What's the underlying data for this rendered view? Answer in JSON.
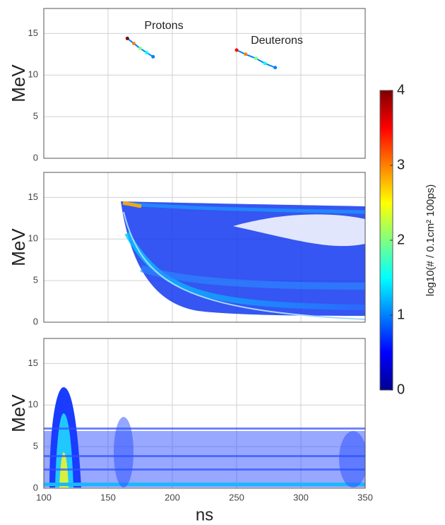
{
  "chart_data": [
    {
      "type": "heatmap",
      "ylabel": "MeV",
      "xlim": [
        100,
        350
      ],
      "ylim": [
        0,
        18
      ],
      "xticks": [
        100,
        150,
        200,
        250,
        300,
        350
      ],
      "yticks": [
        0,
        5,
        10,
        15
      ],
      "grid": true,
      "show_xtick_labels": false,
      "annotations": [
        "Protons",
        "Deuterons"
      ],
      "series": [
        {
          "x": [
            165,
            170,
            175,
            180,
            185
          ],
          "values": [
            14.4,
            13.8,
            13.2,
            12.7,
            12.2
          ],
          "z": [
            3.8,
            2.8,
            2,
            1.4,
            1.1
          ]
        },
        {
          "x": [
            250,
            257,
            265,
            272,
            280
          ],
          "values": [
            13,
            12.5,
            12,
            11.4,
            10.9
          ],
          "z": [
            3.6,
            3,
            2.2,
            1.5,
            1.2
          ]
        }
      ]
    },
    {
      "type": "heatmap",
      "ylabel": "MeV",
      "xlim": [
        100,
        350
      ],
      "ylim": [
        0,
        18
      ],
      "xticks": [
        100,
        150,
        200,
        250,
        300,
        350
      ],
      "yticks": [
        0,
        5,
        10,
        15
      ],
      "grid": true,
      "show_xtick_labels": false,
      "colorbar": {
        "label": "log10(# / 0.1cm² 100ps)",
        "lim": [
          0,
          4
        ],
        "ticks": [
          0,
          1,
          2,
          3,
          4
        ],
        "colormap": [
          "#00008f",
          "#0000ff",
          "#0080ff",
          "#00ffff",
          "#80ff80",
          "#ffff00",
          "#ff8000",
          "#ff0000",
          "#800000"
        ]
      }
    },
    {
      "type": "heatmap",
      "ylabel": "MeV",
      "xlabel": "ns",
      "xlim": [
        100,
        350
      ],
      "ylim": [
        0,
        18
      ],
      "xticks": [
        100,
        150,
        200,
        250,
        300,
        350
      ],
      "yticks": [
        0,
        5,
        10,
        15
      ],
      "grid": true,
      "show_xtick_labels": true
    }
  ]
}
